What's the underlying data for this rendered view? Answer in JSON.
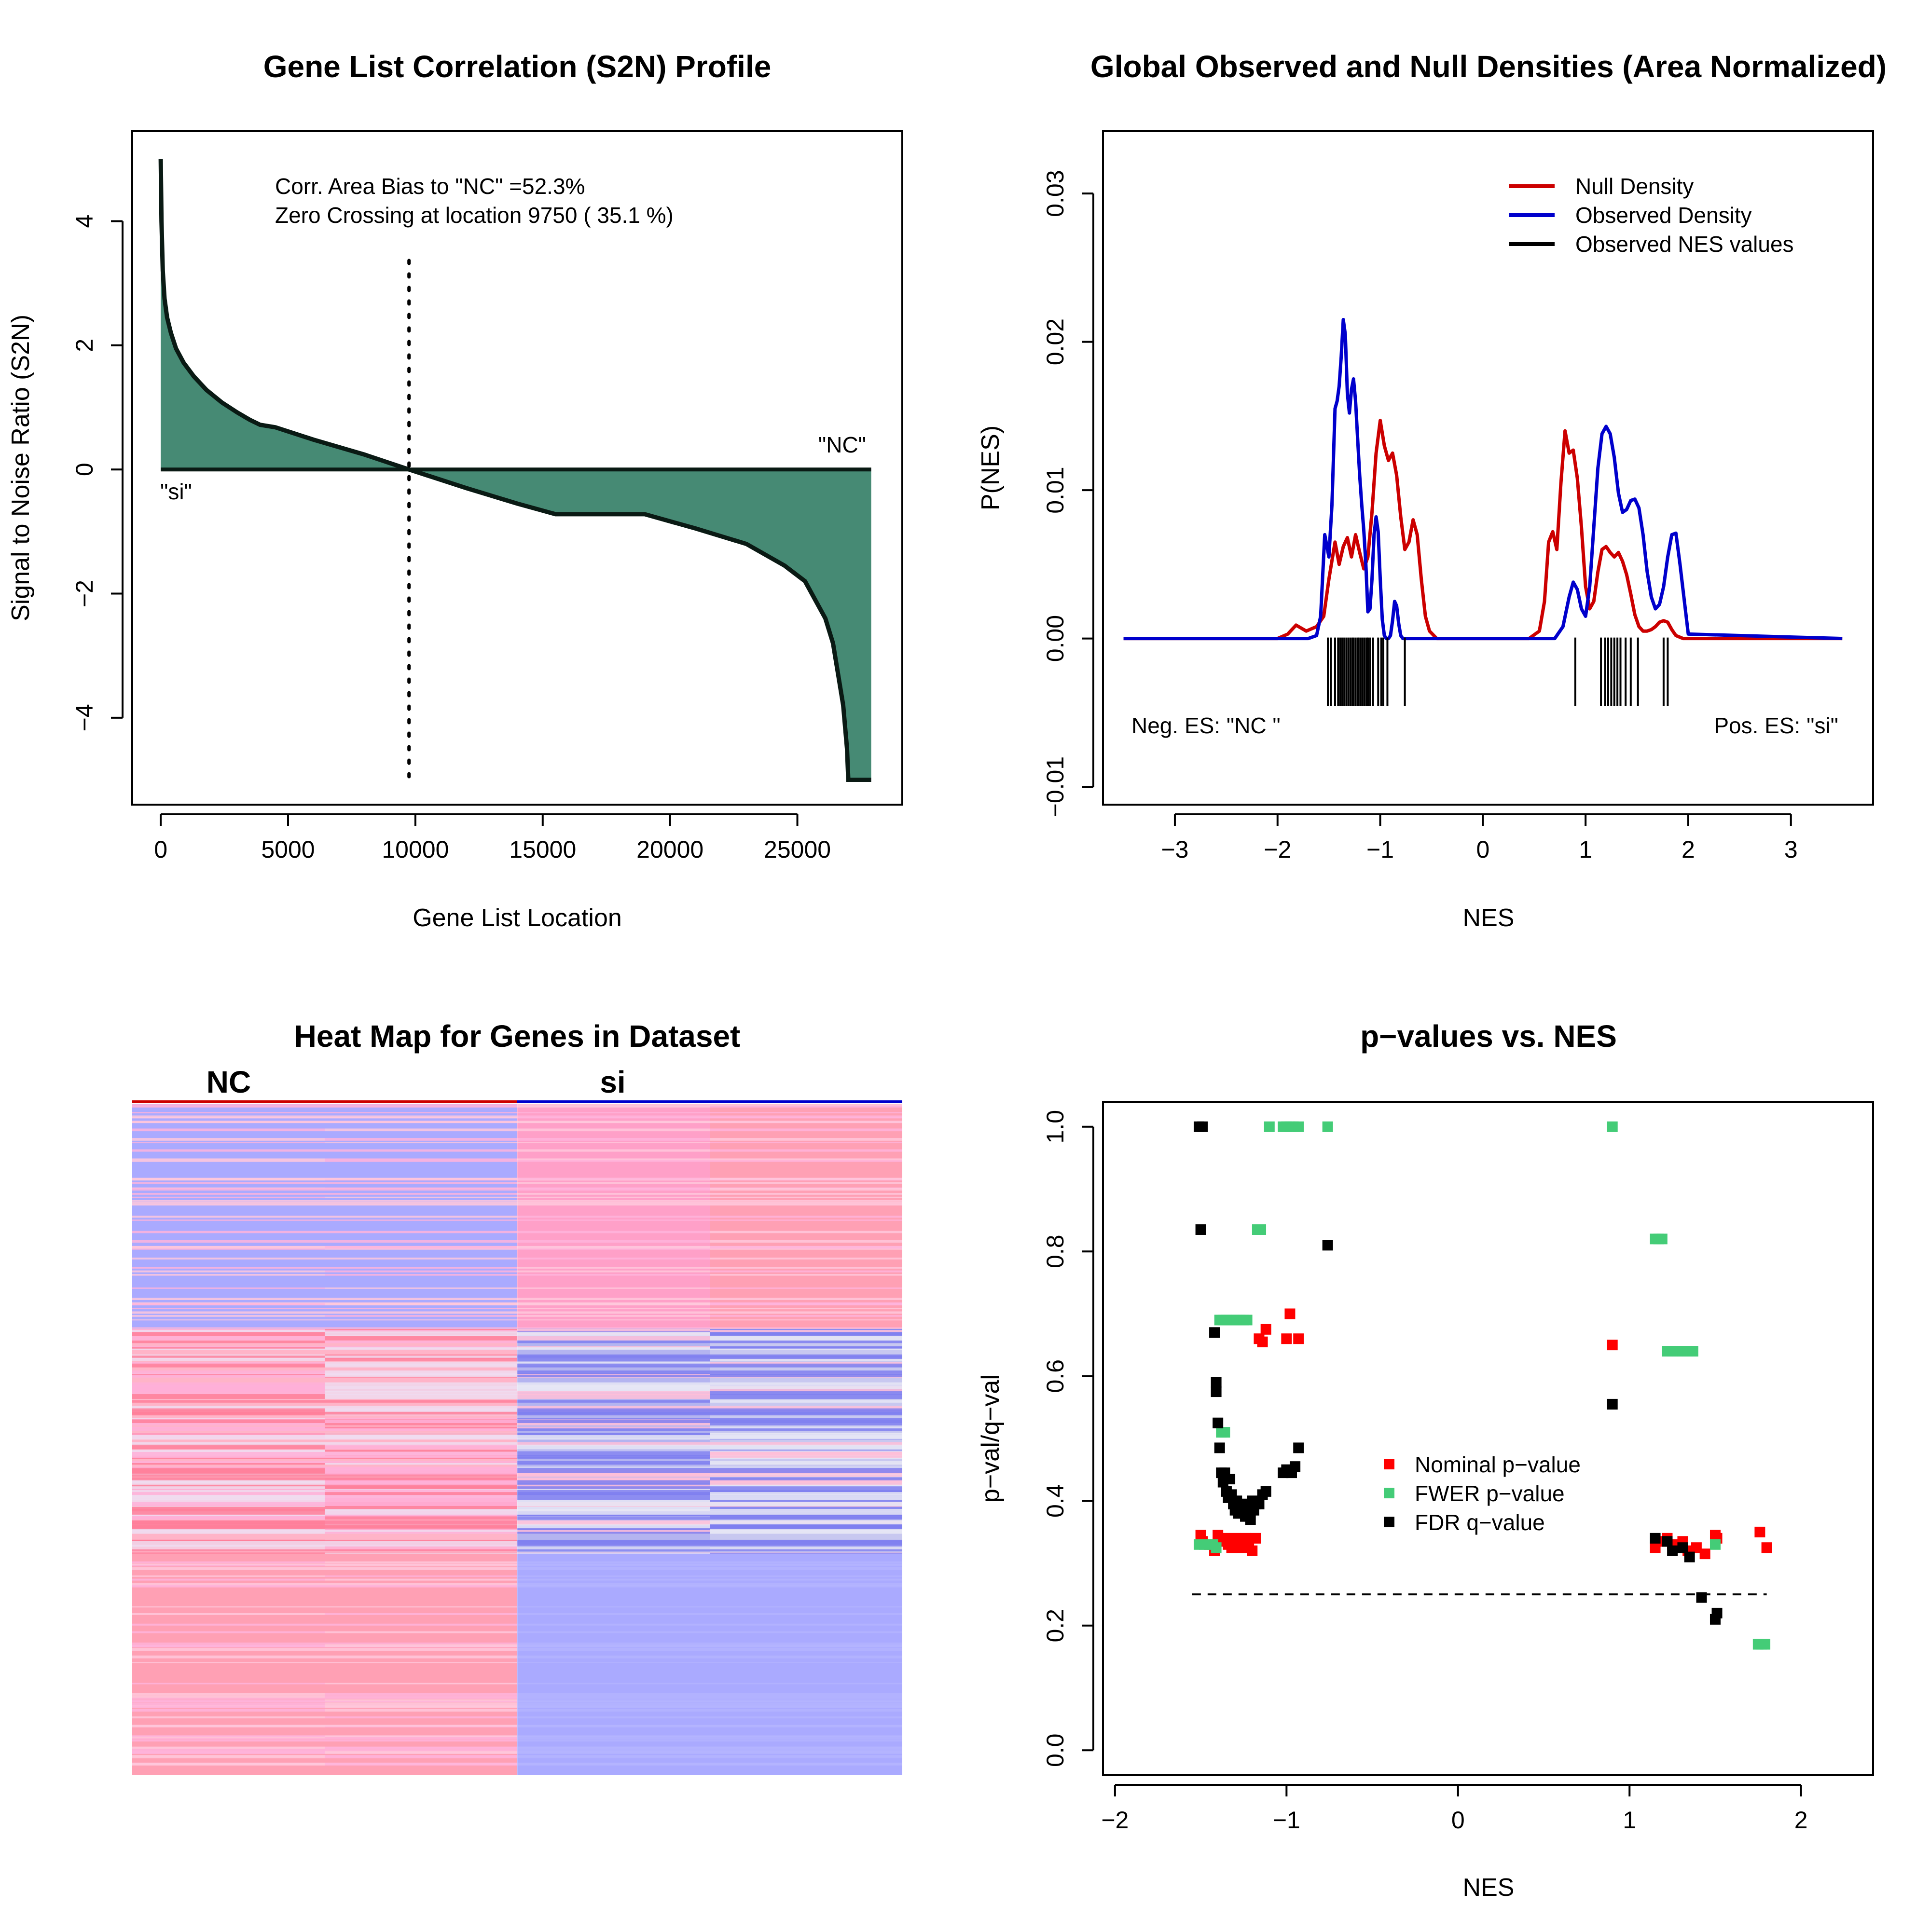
{
  "chart_data": [
    {
      "type": "area",
      "title": "Gene List Correlation (S2N) Profile",
      "xlabel": "Gene List Location",
      "ylabel": "Signal to Noise Ratio (S2N)",
      "xlim": [
        -1120,
        29120
      ],
      "ylim": [
        -5.4,
        5.45
      ],
      "xticks": [
        0,
        5000,
        10000,
        15000,
        20000,
        25000
      ],
      "xtick_labels": [
        "0",
        "5000",
        "10000",
        "15000",
        "20000",
        "25000"
      ],
      "yticks": [
        -4,
        -2,
        0,
        2,
        4
      ],
      "ytick_labels": [
        "−4",
        "−2",
        "0",
        "2",
        "4"
      ],
      "annotations": [
        "Corr. Area Bias to \"NC\" =52.3%",
        "Zero Crossing at location  9750  ( 35.1  %)"
      ],
      "label_neg_side": "\"si\"",
      "label_pos_side": "\"NC\"",
      "zero_crossing": 9750,
      "fill_color": "#468a74",
      "x": [
        0,
        30,
        80,
        150,
        250,
        400,
        600,
        900,
        1300,
        1800,
        2400,
        3000,
        3500,
        3900,
        4500,
        6000,
        8000,
        9750,
        12000,
        14000,
        15500,
        19000,
        21000,
        23000,
        24500,
        25300,
        25700,
        26100,
        26400,
        26600,
        26800,
        26950,
        27000,
        27900
      ],
      "values": [
        5.0,
        4.0,
        3.2,
        2.75,
        2.45,
        2.2,
        1.95,
        1.72,
        1.5,
        1.28,
        1.08,
        0.92,
        0.8,
        0.72,
        0.68,
        0.48,
        0.24,
        0.0,
        -0.3,
        -0.55,
        -0.72,
        -0.72,
        -0.95,
        -1.2,
        -1.55,
        -1.8,
        -2.1,
        -2.4,
        -2.8,
        -3.3,
        -3.8,
        -4.5,
        -5.0,
        -5.0
      ],
      "grid": false
    },
    {
      "type": "line",
      "title": "Global Observed and Null Densities (Area Normalized)",
      "xlabel": "NES",
      "ylabel": "P(NES)",
      "xlim": [
        -3.7,
        3.8
      ],
      "ylim": [
        -0.0112,
        0.0342
      ],
      "xticks": [
        -3,
        -2,
        -1,
        0,
        1,
        2,
        3
      ],
      "xtick_labels": [
        "−3",
        "−2",
        "−1",
        "0",
        "1",
        "2",
        "3"
      ],
      "yticks": [
        -0.01,
        0.0,
        0.01,
        0.02,
        0.03
      ],
      "ytick_labels": [
        "−0.01",
        "0.00",
        "0.01",
        "0.02",
        "0.03"
      ],
      "legend_position": "top-right",
      "series": [
        {
          "name": "Null Density",
          "color": "#cc0000",
          "x": [
            -3.5,
            -2.0,
            -1.9,
            -1.82,
            -1.72,
            -1.62,
            -1.55,
            -1.5,
            -1.44,
            -1.4,
            -1.36,
            -1.32,
            -1.28,
            -1.24,
            -1.2,
            -1.16,
            -1.12,
            -1.08,
            -1.04,
            -1.0,
            -0.96,
            -0.92,
            -0.88,
            -0.84,
            -0.8,
            -0.76,
            -0.72,
            -0.68,
            -0.64,
            -0.6,
            -0.56,
            -0.52,
            -0.45,
            0.45,
            0.55,
            0.6,
            0.64,
            0.68,
            0.72,
            0.76,
            0.8,
            0.84,
            0.88,
            0.92,
            0.96,
            1.0,
            1.04,
            1.08,
            1.12,
            1.16,
            1.2,
            1.24,
            1.28,
            1.32,
            1.36,
            1.4,
            1.44,
            1.48,
            1.52,
            1.56,
            1.6,
            1.64,
            1.68,
            1.72,
            1.76,
            1.8,
            1.84,
            1.88,
            1.95,
            3.5
          ],
          "y": [
            0,
            0,
            0.0003,
            0.0009,
            0.0005,
            0.0008,
            0.0015,
            0.004,
            0.0065,
            0.005,
            0.0062,
            0.0068,
            0.0055,
            0.007,
            0.0058,
            0.0047,
            0.0055,
            0.0085,
            0.0125,
            0.0147,
            0.013,
            0.012,
            0.0125,
            0.011,
            0.0082,
            0.006,
            0.0065,
            0.008,
            0.007,
            0.004,
            0.0015,
            0.0005,
            0,
            0,
            0.0005,
            0.0025,
            0.0065,
            0.0072,
            0.006,
            0.0105,
            0.014,
            0.0125,
            0.0127,
            0.0108,
            0.0075,
            0.0035,
            0.002,
            0.0025,
            0.0045,
            0.006,
            0.0062,
            0.0058,
            0.0055,
            0.0058,
            0.0052,
            0.0043,
            0.003,
            0.0016,
            0.0008,
            0.0005,
            0.0005,
            0.0006,
            0.0008,
            0.0011,
            0.0012,
            0.0011,
            0.0006,
            0.0002,
            0,
            0
          ]
        },
        {
          "name": "Observed Density",
          "color": "#0000cc",
          "x": [
            -3.5,
            -1.7,
            -1.62,
            -1.58,
            -1.54,
            -1.5,
            -1.47,
            -1.44,
            -1.42,
            -1.4,
            -1.38,
            -1.36,
            -1.34,
            -1.32,
            -1.3,
            -1.28,
            -1.26,
            -1.24,
            -1.22,
            -1.2,
            -1.18,
            -1.16,
            -1.14,
            -1.12,
            -1.1,
            -1.08,
            -1.06,
            -1.04,
            -1.02,
            -1.0,
            -0.98,
            -0.96,
            -0.94,
            -0.92,
            -0.9,
            -0.88,
            -0.86,
            -0.84,
            -0.82,
            -0.8,
            -0.78,
            -0.76,
            -0.74,
            -0.72,
            -0.7,
            -0.66,
            -0.6,
            0.7,
            0.78,
            0.84,
            0.88,
            0.92,
            0.96,
            1.0,
            1.04,
            1.08,
            1.12,
            1.16,
            1.2,
            1.24,
            1.28,
            1.32,
            1.36,
            1.4,
            1.44,
            1.48,
            1.52,
            1.56,
            1.6,
            1.64,
            1.68,
            1.72,
            1.76,
            1.8,
            1.84,
            1.88,
            1.92,
            2.0,
            3.5
          ],
          "y": [
            0,
            0,
            0.0002,
            0.0015,
            0.007,
            0.0055,
            0.009,
            0.0155,
            0.016,
            0.017,
            0.019,
            0.0215,
            0.0205,
            0.0165,
            0.0152,
            0.0168,
            0.0175,
            0.016,
            0.0135,
            0.011,
            0.009,
            0.0073,
            0.005,
            0.0018,
            0.002,
            0.004,
            0.007,
            0.0082,
            0.0072,
            0.004,
            0.0013,
            0.0002,
            0,
            0,
            0.0002,
            0.0012,
            0.0025,
            0.0022,
            0.001,
            0.0002,
            0,
            0,
            0,
            0,
            0,
            0,
            0,
            0,
            0.0008,
            0.0028,
            0.0038,
            0.0033,
            0.002,
            0.0015,
            0.0035,
            0.0075,
            0.0115,
            0.0138,
            0.0143,
            0.0138,
            0.0122,
            0.0098,
            0.0085,
            0.0087,
            0.0093,
            0.0094,
            0.0088,
            0.007,
            0.0045,
            0.0028,
            0.002,
            0.0023,
            0.0035,
            0.0055,
            0.007,
            0.0071,
            0.005,
            0.0003,
            0
          ]
        }
      ],
      "observed_nes_values": {
        "name": "Observed NES values",
        "color": "#000000",
        "values": [
          -1.51,
          -1.48,
          -1.44,
          -1.41,
          -1.39,
          -1.37,
          -1.35,
          -1.33,
          -1.31,
          -1.29,
          -1.27,
          -1.26,
          -1.24,
          -1.22,
          -1.21,
          -1.19,
          -1.17,
          -1.15,
          -1.13,
          -1.12,
          -1.1,
          -1.07,
          -1.02,
          -0.99,
          -0.97,
          -0.93,
          -0.76,
          0.9,
          1.15,
          1.19,
          1.22,
          1.25,
          1.28,
          1.31,
          1.34,
          1.39,
          1.44,
          1.51,
          1.76,
          1.8
        ]
      },
      "annotations": [
        "Neg. ES: \"NC \"",
        "Pos. ES: \"si\""
      ],
      "grid": false
    },
    {
      "type": "heatmap",
      "title": "Heat Map for Genes in Dataset",
      "column_groups": [
        "NC",
        "si"
      ],
      "group_colors": [
        "#cc0000",
        "#0000cc"
      ],
      "n_columns": 4,
      "blocks": [
        {
          "rows": "top",
          "fraction": 0.335,
          "columns": [
            "#aaaaff",
            "#aaaaff",
            "#ffa0c8",
            "#ffa0b4"
          ]
        },
        {
          "rows": "middle",
          "fraction": 0.335,
          "columns": [
            "#ffb4c8",
            "#ffb4c8",
            "#b4b4f0",
            "#c8c8f0"
          ]
        },
        {
          "rows": "bottom",
          "fraction": 0.33,
          "columns": [
            "#ffa0b4",
            "#ffa0b4",
            "#aaaaff",
            "#aaaaff"
          ]
        }
      ]
    },
    {
      "type": "scatter",
      "title": "p−values vs. NES",
      "xlabel": "NES",
      "ylabel": "p−val/q−val",
      "xlim": [
        -2.07,
        2.42
      ],
      "ylim": [
        -0.04,
        1.04
      ],
      "xticks": [
        -2,
        -1,
        0,
        1,
        2
      ],
      "xtick_labels": [
        "−2",
        "−1",
        "0",
        "1",
        "2"
      ],
      "yticks": [
        0.0,
        0.2,
        0.4,
        0.6,
        0.8,
        1.0
      ],
      "ytick_labels": [
        "0.0",
        "0.2",
        "0.4",
        "0.6",
        "0.8",
        "1.0"
      ],
      "legend_position": "center-right",
      "threshold_line": {
        "y": 0.25,
        "x_from": -1.55,
        "x_to": 1.8,
        "style": "dashed"
      },
      "series": [
        {
          "name": "Nominal p−value",
          "color": "#ff0000",
          "x": [
            -1.5,
            -1.49,
            -1.45,
            -1.42,
            -1.4,
            -1.38,
            -1.36,
            -1.34,
            -1.32,
            -1.3,
            -1.28,
            -1.26,
            -1.24,
            -1.22,
            -1.2,
            -1.18,
            -1.16,
            -1.14,
            -1.12,
            -1.0,
            -0.98,
            -0.93,
            0.9,
            1.15,
            1.19,
            1.22,
            1.25,
            1.28,
            1.31,
            1.34,
            1.39,
            1.44,
            1.5,
            1.51,
            1.76,
            1.8
          ],
          "y": [
            0.345,
            0.335,
            0.33,
            0.32,
            0.345,
            0.335,
            0.34,
            0.33,
            0.325,
            0.34,
            0.33,
            0.325,
            0.34,
            0.33,
            0.32,
            0.34,
            0.66,
            0.655,
            0.675,
            0.66,
            0.7,
            0.66,
            0.65,
            0.325,
            0.335,
            0.34,
            0.33,
            0.325,
            0.335,
            0.32,
            0.325,
            0.315,
            0.345,
            0.34,
            0.35,
            0.325
          ]
        },
        {
          "name": "FWER p−value",
          "color": "#44cc77",
          "x": [
            -1.51,
            -1.48,
            -1.45,
            -1.43,
            -1.41,
            -1.39,
            -1.37,
            -1.35,
            -1.33,
            -1.31,
            -1.29,
            -1.27,
            -1.25,
            -1.23,
            -1.38,
            -1.36,
            -1.17,
            -1.15,
            -1.1,
            -1.02,
            -1.0,
            -0.98,
            -0.96,
            -0.93,
            -0.76,
            0.9,
            1.15,
            1.17,
            1.19,
            1.22,
            1.25,
            1.28,
            1.31,
            1.34,
            1.37,
            1.5,
            1.75,
            1.77,
            1.79
          ],
          "y": [
            0.33,
            0.33,
            0.33,
            0.33,
            0.325,
            0.69,
            0.69,
            0.69,
            0.69,
            0.69,
            0.69,
            0.69,
            0.69,
            0.69,
            0.51,
            0.51,
            0.835,
            0.835,
            1.0,
            1.0,
            1.0,
            1.0,
            1.0,
            1.0,
            1.0,
            1.0,
            0.82,
            0.82,
            0.82,
            0.64,
            0.64,
            0.64,
            0.64,
            0.64,
            0.64,
            0.33,
            0.17,
            0.17,
            0.17
          ]
        },
        {
          "name": "FDR q−value",
          "color": "#000000",
          "x": [
            -1.51,
            -1.49,
            -1.5,
            -1.42,
            -1.41,
            -1.41,
            -1.4,
            -1.39,
            -1.38,
            -1.37,
            -1.36,
            -1.35,
            -1.34,
            -1.33,
            -1.32,
            -1.31,
            -1.3,
            -1.29,
            -1.28,
            -1.27,
            -1.26,
            -1.25,
            -1.24,
            -1.23,
            -1.22,
            -1.21,
            -1.2,
            -1.19,
            -1.18,
            -1.16,
            -1.14,
            -1.12,
            -1.02,
            -1.0,
            -0.97,
            -0.95,
            -0.93,
            -0.76,
            0.9,
            1.15,
            1.22,
            1.25,
            1.31,
            1.35,
            1.42,
            1.5,
            1.51
          ],
          "y": [
            1.0,
            1.0,
            0.835,
            0.67,
            0.59,
            0.575,
            0.525,
            0.485,
            0.445,
            0.43,
            0.445,
            0.415,
            0.405,
            0.435,
            0.41,
            0.395,
            0.385,
            0.4,
            0.38,
            0.39,
            0.385,
            0.395,
            0.375,
            0.385,
            0.38,
            0.37,
            0.4,
            0.385,
            0.395,
            0.395,
            0.41,
            0.415,
            0.445,
            0.45,
            0.445,
            0.455,
            0.485,
            0.81,
            0.555,
            0.34,
            0.335,
            0.32,
            0.325,
            0.31,
            0.245,
            0.21,
            0.22
          ]
        }
      ],
      "grid": false
    }
  ]
}
